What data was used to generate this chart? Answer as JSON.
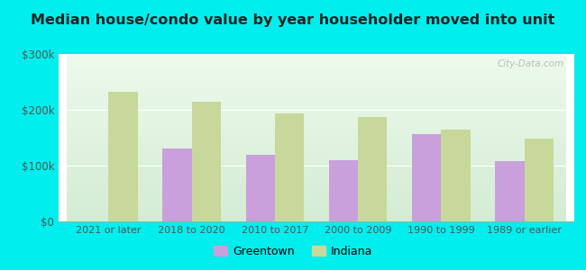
{
  "title": "Median house/condo value by year householder moved into unit",
  "categories": [
    "2021 or later",
    "2018 to 2020",
    "2010 to 2017",
    "2000 to 2009",
    "1990 to 1999",
    "1989 or earlier"
  ],
  "greentown_values": [
    0,
    130000,
    120000,
    110000,
    157000,
    108000
  ],
  "indiana_values": [
    232000,
    215000,
    193000,
    187000,
    165000,
    148000
  ],
  "greentown_color": "#c9a0dc",
  "indiana_color": "#c8d89a",
  "background_outer": "#00eeee",
  "background_inner_top": "#edfaed",
  "background_inner_bottom": "#d4ecd4",
  "ylim": [
    0,
    300000
  ],
  "yticks": [
    0,
    100000,
    200000,
    300000
  ],
  "ytick_labels": [
    "$0",
    "$100k",
    "$200k",
    "$300k"
  ],
  "bar_width": 0.35,
  "legend_greentown": "Greentown",
  "legend_indiana": "Indiana",
  "watermark": "City-Data.com"
}
